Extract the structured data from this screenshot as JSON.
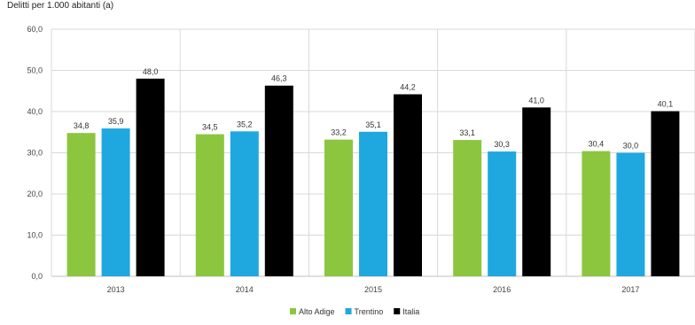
{
  "chart_data": {
    "type": "bar",
    "ylabel": "Delitti per 1.000 abitanti (a)",
    "categories": [
      "2013",
      "2014",
      "2015",
      "2016",
      "2017"
    ],
    "series": [
      {
        "name": "Alto Adige",
        "color": "#8cc63f",
        "values": [
          34.8,
          34.5,
          33.2,
          33.1,
          30.4
        ]
      },
      {
        "name": "Trentino",
        "color": "#1fa8e0",
        "values": [
          35.9,
          35.2,
          35.1,
          30.3,
          30.0
        ]
      },
      {
        "name": "Italia",
        "color": "#000000",
        "values": [
          48.0,
          46.3,
          44.2,
          41.0,
          40.1
        ]
      }
    ],
    "ylim": [
      0,
      60
    ],
    "yticks": [
      "0,0",
      "10,0",
      "20,0",
      "30,0",
      "40,0",
      "50,0",
      "60,0"
    ],
    "data_labels": [
      [
        "34,8",
        "35,9",
        "48,0"
      ],
      [
        "34,5",
        "35,2",
        "46,3"
      ],
      [
        "33,2",
        "35,1",
        "44,2"
      ],
      [
        "33,1",
        "30,3",
        "41,0"
      ],
      [
        "30,4",
        "30,0",
        "40,1"
      ]
    ],
    "grid": true,
    "legend_position": "bottom"
  }
}
